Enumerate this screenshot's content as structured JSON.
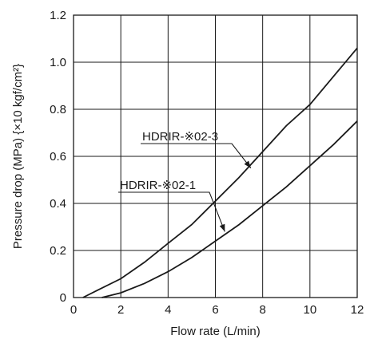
{
  "chart_data": {
    "type": "line",
    "xlabel": "Flow rate (L/min)",
    "ylabel": "Pressure drop (MPa) {×10 kgf/cm²}",
    "xlim": [
      0,
      12
    ],
    "ylim": [
      0,
      1.2
    ],
    "x_ticks": [
      "0",
      "2",
      "4",
      "6",
      "8",
      "10",
      "12"
    ],
    "y_ticks": [
      "0",
      "0.2",
      "0.4",
      "0.6",
      "0.8",
      "1.0",
      "1.2"
    ],
    "grid": true,
    "series": [
      {
        "name": "HDRIR-※02-3",
        "x": [
          0.4,
          1,
          2,
          3,
          4,
          5,
          6,
          7,
          8,
          9,
          10,
          11,
          12
        ],
        "y": [
          0.0,
          0.03,
          0.08,
          0.15,
          0.23,
          0.31,
          0.41,
          0.51,
          0.62,
          0.73,
          0.82,
          0.94,
          1.06
        ]
      },
      {
        "name": "HDRIR-※02-1",
        "x": [
          1.2,
          2,
          3,
          4,
          5,
          6,
          7,
          8,
          9,
          10,
          11,
          12
        ],
        "y": [
          0.0,
          0.02,
          0.06,
          0.11,
          0.17,
          0.24,
          0.31,
          0.39,
          0.47,
          0.56,
          0.65,
          0.75
        ]
      }
    ]
  }
}
